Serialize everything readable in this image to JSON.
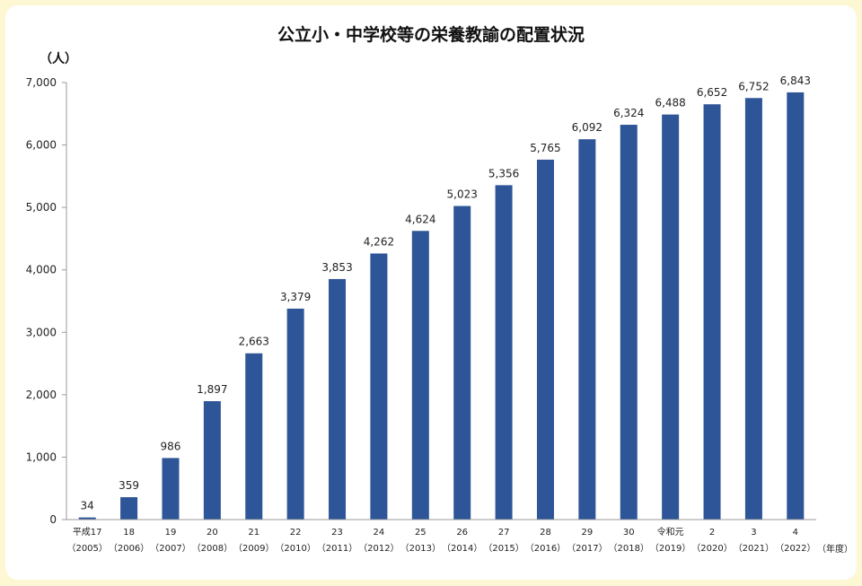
{
  "chart_data": {
    "type": "bar",
    "title": "公立小・中学校等の栄養教諭の配置状況",
    "y_unit_label": "（人）",
    "x_unit_label": "（年度）",
    "ylim": [
      0,
      7000
    ],
    "y_ticks": [
      "0",
      "1,000",
      "2,000",
      "3,000",
      "4,000",
      "5,000",
      "6,000",
      "7,000"
    ],
    "grid": false,
    "categories": [
      {
        "line1": "平成17",
        "line2": "（2005）"
      },
      {
        "line1": "18",
        "line2": "（2006）"
      },
      {
        "line1": "19",
        "line2": "（2007）"
      },
      {
        "line1": "20",
        "line2": "（2008）"
      },
      {
        "line1": "21",
        "line2": "（2009）"
      },
      {
        "line1": "22",
        "line2": "（2010）"
      },
      {
        "line1": "23",
        "line2": "（2011）"
      },
      {
        "line1": "24",
        "line2": "（2012）"
      },
      {
        "line1": "25",
        "line2": "（2013）"
      },
      {
        "line1": "26",
        "line2": "（2014）"
      },
      {
        "line1": "27",
        "line2": "（2015）"
      },
      {
        "line1": "28",
        "line2": "（2016）"
      },
      {
        "line1": "29",
        "line2": "（2017）"
      },
      {
        "line1": "30",
        "line2": "（2018）"
      },
      {
        "line1": "令和元",
        "line2": "（2019）"
      },
      {
        "line1": "2",
        "line2": "（2020）"
      },
      {
        "line1": "3",
        "line2": "（2021）"
      },
      {
        "line1": "4",
        "line2": "（2022）"
      }
    ],
    "values": [
      34,
      359,
      986,
      1897,
      2663,
      3379,
      3853,
      4262,
      4624,
      5023,
      5356,
      5765,
      6092,
      6324,
      6488,
      6652,
      6752,
      6843
    ],
    "value_labels": [
      "34",
      "359",
      "986",
      "1,897",
      "2,663",
      "3,379",
      "3,853",
      "4,262",
      "4,624",
      "5,023",
      "5,356",
      "5,765",
      "6,092",
      "6,324",
      "6,488",
      "6,652",
      "6,752",
      "6,843"
    ],
    "bar_color": "#2e5597",
    "background_color": "#fdf7d3"
  }
}
